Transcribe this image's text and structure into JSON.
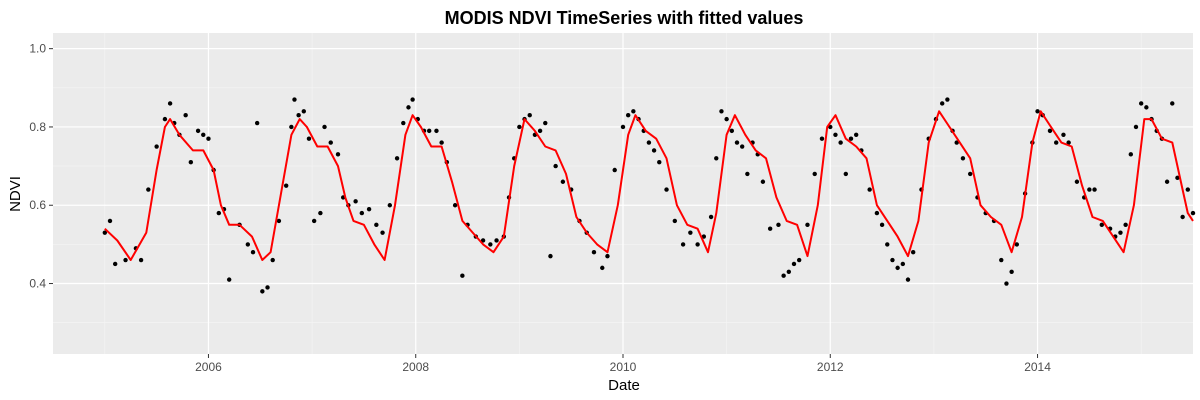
{
  "chart_data": {
    "type": "scatter",
    "title": "MODIS NDVI TimeSeries with fitted values",
    "xlabel": "Date",
    "ylabel": "NDVI",
    "xlim": [
      2004.5,
      2015.5
    ],
    "ylim": [
      0.22,
      1.04
    ],
    "x_ticks": [
      2006,
      2008,
      2010,
      2012,
      2014
    ],
    "x_tick_labels": [
      "2006",
      "2008",
      "2010",
      "2012",
      "2014"
    ],
    "y_ticks": [
      0.4,
      0.6,
      0.8,
      1.0
    ],
    "y_tick_labels": [
      "0.4",
      "0.6",
      "0.8",
      "1.0"
    ],
    "grid": true,
    "background": "#ebebeb",
    "series": [
      {
        "kind": "points",
        "color": "#000000",
        "points": [
          [
            2005.0,
            0.53
          ],
          [
            2005.05,
            0.56
          ],
          [
            2005.1,
            0.45
          ],
          [
            2005.2,
            0.46
          ],
          [
            2005.3,
            0.49
          ],
          [
            2005.35,
            0.46
          ],
          [
            2005.42,
            0.64
          ],
          [
            2005.5,
            0.75
          ],
          [
            2005.58,
            0.82
          ],
          [
            2005.63,
            0.86
          ],
          [
            2005.67,
            0.81
          ],
          [
            2005.72,
            0.78
          ],
          [
            2005.78,
            0.83
          ],
          [
            2005.83,
            0.71
          ],
          [
            2005.9,
            0.79
          ],
          [
            2005.95,
            0.78
          ],
          [
            2006.0,
            0.77
          ],
          [
            2006.05,
            0.69
          ],
          [
            2006.1,
            0.58
          ],
          [
            2006.15,
            0.59
          ],
          [
            2006.2,
            0.41
          ],
          [
            2006.3,
            0.55
          ],
          [
            2006.38,
            0.5
          ],
          [
            2006.43,
            0.48
          ],
          [
            2006.47,
            0.81
          ],
          [
            2006.52,
            0.38
          ],
          [
            2006.57,
            0.39
          ],
          [
            2006.62,
            0.46
          ],
          [
            2006.68,
            0.56
          ],
          [
            2006.75,
            0.65
          ],
          [
            2006.8,
            0.8
          ],
          [
            2006.83,
            0.87
          ],
          [
            2006.87,
            0.83
          ],
          [
            2006.92,
            0.84
          ],
          [
            2006.97,
            0.77
          ],
          [
            2007.02,
            0.56
          ],
          [
            2007.08,
            0.58
          ],
          [
            2007.12,
            0.8
          ],
          [
            2007.18,
            0.76
          ],
          [
            2007.25,
            0.73
          ],
          [
            2007.3,
            0.62
          ],
          [
            2007.35,
            0.6
          ],
          [
            2007.42,
            0.61
          ],
          [
            2007.48,
            0.58
          ],
          [
            2007.55,
            0.59
          ],
          [
            2007.62,
            0.55
          ],
          [
            2007.68,
            0.53
          ],
          [
            2007.75,
            0.6
          ],
          [
            2007.82,
            0.72
          ],
          [
            2007.88,
            0.81
          ],
          [
            2007.93,
            0.85
          ],
          [
            2007.97,
            0.87
          ],
          [
            2008.02,
            0.82
          ],
          [
            2008.08,
            0.79
          ],
          [
            2008.13,
            0.79
          ],
          [
            2008.2,
            0.79
          ],
          [
            2008.25,
            0.76
          ],
          [
            2008.3,
            0.71
          ],
          [
            2008.38,
            0.6
          ],
          [
            2008.45,
            0.42
          ],
          [
            2008.5,
            0.55
          ],
          [
            2008.58,
            0.52
          ],
          [
            2008.65,
            0.51
          ],
          [
            2008.72,
            0.5
          ],
          [
            2008.78,
            0.51
          ],
          [
            2008.85,
            0.52
          ],
          [
            2008.9,
            0.62
          ],
          [
            2008.95,
            0.72
          ],
          [
            2009.0,
            0.8
          ],
          [
            2009.05,
            0.82
          ],
          [
            2009.1,
            0.83
          ],
          [
            2009.15,
            0.78
          ],
          [
            2009.2,
            0.79
          ],
          [
            2009.25,
            0.81
          ],
          [
            2009.3,
            0.47
          ],
          [
            2009.35,
            0.7
          ],
          [
            2009.42,
            0.66
          ],
          [
            2009.5,
            0.64
          ],
          [
            2009.58,
            0.56
          ],
          [
            2009.65,
            0.53
          ],
          [
            2009.72,
            0.48
          ],
          [
            2009.8,
            0.44
          ],
          [
            2009.85,
            0.47
          ],
          [
            2009.92,
            0.69
          ],
          [
            2010.0,
            0.8
          ],
          [
            2010.05,
            0.83
          ],
          [
            2010.1,
            0.84
          ],
          [
            2010.15,
            0.82
          ],
          [
            2010.2,
            0.79
          ],
          [
            2010.25,
            0.76
          ],
          [
            2010.3,
            0.74
          ],
          [
            2010.35,
            0.71
          ],
          [
            2010.42,
            0.64
          ],
          [
            2010.5,
            0.56
          ],
          [
            2010.58,
            0.5
          ],
          [
            2010.65,
            0.53
          ],
          [
            2010.72,
            0.5
          ],
          [
            2010.78,
            0.52
          ],
          [
            2010.85,
            0.57
          ],
          [
            2010.9,
            0.72
          ],
          [
            2010.95,
            0.84
          ],
          [
            2011.0,
            0.82
          ],
          [
            2011.05,
            0.79
          ],
          [
            2011.1,
            0.76
          ],
          [
            2011.15,
            0.75
          ],
          [
            2011.2,
            0.68
          ],
          [
            2011.25,
            0.76
          ],
          [
            2011.3,
            0.73
          ],
          [
            2011.35,
            0.66
          ],
          [
            2011.42,
            0.54
          ],
          [
            2011.5,
            0.55
          ],
          [
            2011.55,
            0.42
          ],
          [
            2011.6,
            0.43
          ],
          [
            2011.65,
            0.45
          ],
          [
            2011.7,
            0.46
          ],
          [
            2011.78,
            0.55
          ],
          [
            2011.85,
            0.68
          ],
          [
            2011.92,
            0.77
          ],
          [
            2012.0,
            0.8
          ],
          [
            2012.05,
            0.78
          ],
          [
            2012.1,
            0.76
          ],
          [
            2012.15,
            0.68
          ],
          [
            2012.2,
            0.77
          ],
          [
            2012.25,
            0.78
          ],
          [
            2012.3,
            0.74
          ],
          [
            2012.38,
            0.64
          ],
          [
            2012.45,
            0.58
          ],
          [
            2012.5,
            0.55
          ],
          [
            2012.55,
            0.5
          ],
          [
            2012.6,
            0.46
          ],
          [
            2012.65,
            0.44
          ],
          [
            2012.7,
            0.45
          ],
          [
            2012.75,
            0.41
          ],
          [
            2012.8,
            0.48
          ],
          [
            2012.88,
            0.64
          ],
          [
            2012.95,
            0.77
          ],
          [
            2013.02,
            0.82
          ],
          [
            2013.08,
            0.86
          ],
          [
            2013.13,
            0.87
          ],
          [
            2013.18,
            0.79
          ],
          [
            2013.22,
            0.76
          ],
          [
            2013.28,
            0.72
          ],
          [
            2013.35,
            0.68
          ],
          [
            2013.42,
            0.62
          ],
          [
            2013.5,
            0.58
          ],
          [
            2013.58,
            0.56
          ],
          [
            2013.65,
            0.46
          ],
          [
            2013.7,
            0.4
          ],
          [
            2013.75,
            0.43
          ],
          [
            2013.8,
            0.5
          ],
          [
            2013.88,
            0.63
          ],
          [
            2013.95,
            0.76
          ],
          [
            2014.0,
            0.84
          ],
          [
            2014.05,
            0.83
          ],
          [
            2014.12,
            0.79
          ],
          [
            2014.18,
            0.76
          ],
          [
            2014.25,
            0.78
          ],
          [
            2014.3,
            0.76
          ],
          [
            2014.38,
            0.66
          ],
          [
            2014.45,
            0.62
          ],
          [
            2014.5,
            0.64
          ],
          [
            2014.55,
            0.64
          ],
          [
            2014.62,
            0.55
          ],
          [
            2014.7,
            0.54
          ],
          [
            2014.75,
            0.52
          ],
          [
            2014.8,
            0.53
          ],
          [
            2014.85,
            0.55
          ],
          [
            2014.9,
            0.73
          ],
          [
            2014.95,
            0.8
          ],
          [
            2015.0,
            0.86
          ],
          [
            2015.05,
            0.85
          ],
          [
            2015.1,
            0.82
          ],
          [
            2015.15,
            0.79
          ],
          [
            2015.2,
            0.77
          ],
          [
            2015.25,
            0.66
          ],
          [
            2015.3,
            0.86
          ],
          [
            2015.35,
            0.67
          ],
          [
            2015.4,
            0.57
          ],
          [
            2015.45,
            0.64
          ],
          [
            2015.5,
            0.58
          ]
        ]
      },
      {
        "kind": "line",
        "color": "#ff0000",
        "points": [
          [
            2005.0,
            0.54
          ],
          [
            2005.12,
            0.51
          ],
          [
            2005.25,
            0.46
          ],
          [
            2005.4,
            0.53
          ],
          [
            2005.5,
            0.69
          ],
          [
            2005.58,
            0.8
          ],
          [
            2005.63,
            0.82
          ],
          [
            2005.72,
            0.78
          ],
          [
            2005.85,
            0.74
          ],
          [
            2005.95,
            0.74
          ],
          [
            2006.05,
            0.69
          ],
          [
            2006.12,
            0.6
          ],
          [
            2006.2,
            0.55
          ],
          [
            2006.3,
            0.55
          ],
          [
            2006.42,
            0.52
          ],
          [
            2006.52,
            0.46
          ],
          [
            2006.6,
            0.48
          ],
          [
            2006.7,
            0.63
          ],
          [
            2006.8,
            0.78
          ],
          [
            2006.88,
            0.82
          ],
          [
            2006.95,
            0.8
          ],
          [
            2007.05,
            0.75
          ],
          [
            2007.15,
            0.75
          ],
          [
            2007.25,
            0.7
          ],
          [
            2007.32,
            0.62
          ],
          [
            2007.4,
            0.56
          ],
          [
            2007.5,
            0.55
          ],
          [
            2007.6,
            0.5
          ],
          [
            2007.7,
            0.46
          ],
          [
            2007.8,
            0.6
          ],
          [
            2007.9,
            0.78
          ],
          [
            2007.97,
            0.83
          ],
          [
            2008.05,
            0.8
          ],
          [
            2008.15,
            0.75
          ],
          [
            2008.25,
            0.75
          ],
          [
            2008.35,
            0.66
          ],
          [
            2008.45,
            0.56
          ],
          [
            2008.55,
            0.53
          ],
          [
            2008.65,
            0.5
          ],
          [
            2008.75,
            0.48
          ],
          [
            2008.85,
            0.52
          ],
          [
            2008.95,
            0.7
          ],
          [
            2009.05,
            0.82
          ],
          [
            2009.15,
            0.79
          ],
          [
            2009.25,
            0.75
          ],
          [
            2009.35,
            0.74
          ],
          [
            2009.45,
            0.68
          ],
          [
            2009.55,
            0.57
          ],
          [
            2009.65,
            0.53
          ],
          [
            2009.75,
            0.5
          ],
          [
            2009.85,
            0.48
          ],
          [
            2009.95,
            0.6
          ],
          [
            2010.05,
            0.78
          ],
          [
            2010.12,
            0.83
          ],
          [
            2010.22,
            0.79
          ],
          [
            2010.32,
            0.77
          ],
          [
            2010.42,
            0.72
          ],
          [
            2010.52,
            0.6
          ],
          [
            2010.62,
            0.55
          ],
          [
            2010.72,
            0.54
          ],
          [
            2010.82,
            0.48
          ],
          [
            2010.9,
            0.58
          ],
          [
            2011.0,
            0.78
          ],
          [
            2011.08,
            0.83
          ],
          [
            2011.18,
            0.78
          ],
          [
            2011.28,
            0.74
          ],
          [
            2011.38,
            0.72
          ],
          [
            2011.48,
            0.62
          ],
          [
            2011.58,
            0.56
          ],
          [
            2011.68,
            0.55
          ],
          [
            2011.78,
            0.47
          ],
          [
            2011.88,
            0.6
          ],
          [
            2011.97,
            0.8
          ],
          [
            2012.05,
            0.83
          ],
          [
            2012.15,
            0.77
          ],
          [
            2012.25,
            0.75
          ],
          [
            2012.35,
            0.72
          ],
          [
            2012.45,
            0.6
          ],
          [
            2012.55,
            0.56
          ],
          [
            2012.65,
            0.52
          ],
          [
            2012.75,
            0.47
          ],
          [
            2012.85,
            0.56
          ],
          [
            2012.95,
            0.76
          ],
          [
            2013.05,
            0.84
          ],
          [
            2013.15,
            0.8
          ],
          [
            2013.25,
            0.76
          ],
          [
            2013.35,
            0.72
          ],
          [
            2013.45,
            0.6
          ],
          [
            2013.55,
            0.57
          ],
          [
            2013.65,
            0.55
          ],
          [
            2013.75,
            0.48
          ],
          [
            2013.85,
            0.57
          ],
          [
            2013.95,
            0.76
          ],
          [
            2014.03,
            0.84
          ],
          [
            2014.13,
            0.8
          ],
          [
            2014.23,
            0.76
          ],
          [
            2014.33,
            0.75
          ],
          [
            2014.43,
            0.65
          ],
          [
            2014.53,
            0.57
          ],
          [
            2014.63,
            0.56
          ],
          [
            2014.73,
            0.52
          ],
          [
            2014.83,
            0.48
          ],
          [
            2014.93,
            0.6
          ],
          [
            2015.03,
            0.82
          ],
          [
            2015.1,
            0.82
          ],
          [
            2015.2,
            0.77
          ],
          [
            2015.3,
            0.76
          ],
          [
            2015.4,
            0.64
          ],
          [
            2015.45,
            0.58
          ],
          [
            2015.5,
            0.56
          ]
        ]
      }
    ]
  }
}
